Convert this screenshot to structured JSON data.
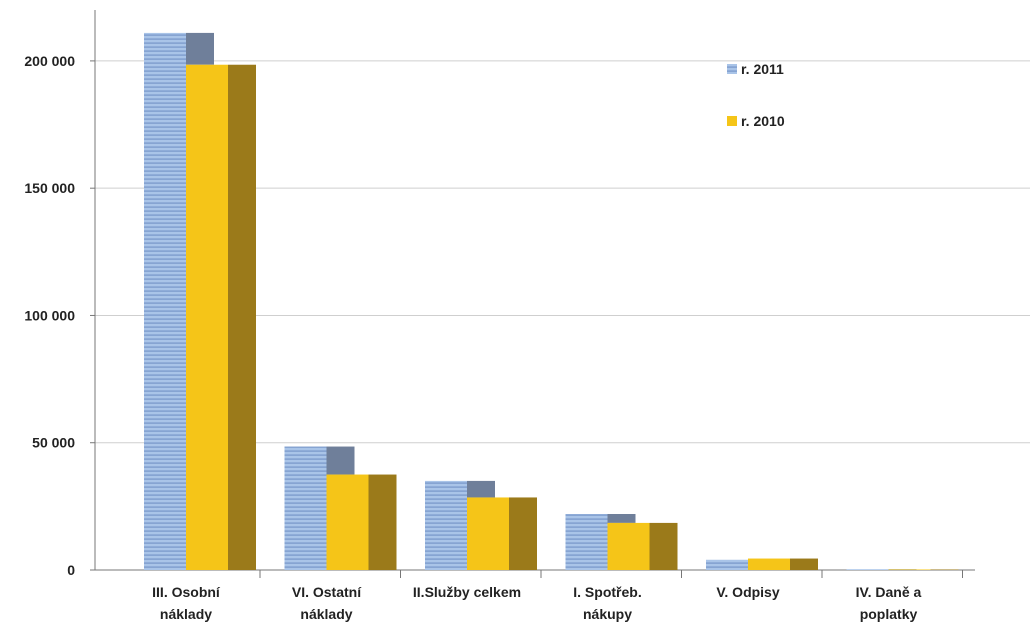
{
  "chart_data": {
    "type": "bar",
    "categories": [
      [
        "III. Osobní",
        "náklady"
      ],
      [
        "VI. Ostatní",
        "náklady"
      ],
      [
        "II.Služby celkem"
      ],
      [
        "I. Spotřeb.",
        "nákupy"
      ],
      [
        "V. Odpisy"
      ],
      [
        "IV. Daně a",
        "poplatky"
      ]
    ],
    "series": [
      {
        "name": "r. 2011",
        "values": [
          211000,
          48500,
          35000,
          22000,
          4000,
          300
        ]
      },
      {
        "name": "r. 2010",
        "values": [
          198500,
          37500,
          28500,
          18500,
          4500,
          200
        ]
      }
    ],
    "colors": {
      "r. 2011": "#9db9e0",
      "r. 2011_side": "#6f7f9a",
      "r. 2010": "#f5c518",
      "r. 2010_side": "#9b7a1a"
    },
    "ylim": [
      0,
      220000
    ],
    "yticks": [
      0,
      50000,
      100000,
      150000,
      200000
    ],
    "ytick_labels": [
      "0",
      "50 000",
      "100 000",
      "150 000",
      "200 000"
    ],
    "grid": true,
    "legend_position": "top-right",
    "title": "",
    "xlabel": "",
    "ylabel": ""
  }
}
